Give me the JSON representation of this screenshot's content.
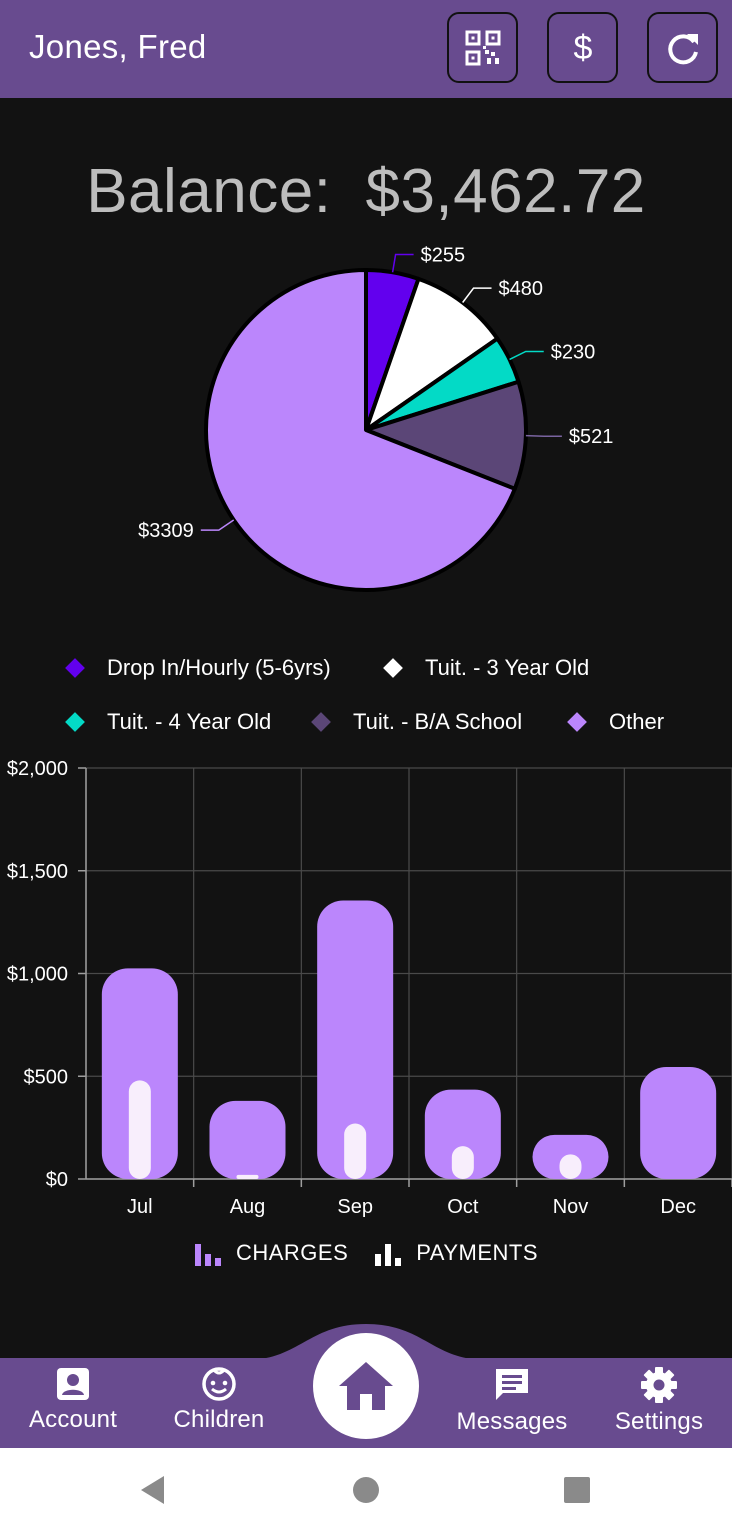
{
  "header": {
    "title": "Jones, Fred",
    "buttons": [
      {
        "name": "qr-code-button",
        "icon": "qr-code-icon"
      },
      {
        "name": "payment-button",
        "icon": "dollar-icon"
      },
      {
        "name": "refresh-button",
        "icon": "refresh-icon"
      }
    ]
  },
  "balance": {
    "label": "Balance:",
    "amount": "$3,462.72"
  },
  "pie_legend": [
    {
      "label": "Drop In/Hourly (5-6yrs)",
      "color": "#6200ee"
    },
    {
      "label": "Tuit. - 3 Year Old",
      "color": "#ffffff"
    },
    {
      "label": "Tuit. - 4 Year Old",
      "color": "#03dac6"
    },
    {
      "label": "Tuit. - B/A School",
      "color": "#5b4677"
    },
    {
      "label": "Other",
      "color": "#bb86fc"
    }
  ],
  "bar_legend": {
    "charges": "CHARGES",
    "payments": "PAYMENTS"
  },
  "chart_data": [
    {
      "type": "pie",
      "title": "",
      "slices": [
        {
          "label": "Drop In/Hourly (5-6yrs)",
          "value": 255,
          "display": "$255",
          "color": "#6200ee"
        },
        {
          "label": "Tuit. - 3 Year Old",
          "value": 480,
          "display": "$480",
          "color": "#ffffff"
        },
        {
          "label": "Tuit. - 4 Year Old",
          "value": 230,
          "display": "$230",
          "color": "#03dac6"
        },
        {
          "label": "Tuit. - B/A School",
          "value": 521,
          "display": "$521",
          "color": "#5b4677"
        },
        {
          "label": "Other",
          "value": 3309,
          "display": "$3309",
          "color": "#bb86fc"
        }
      ]
    },
    {
      "type": "bar",
      "title": "",
      "categories": [
        "Jul",
        "Aug",
        "Sep",
        "Oct",
        "Nov",
        "Dec"
      ],
      "series": [
        {
          "name": "CHARGES",
          "values": [
            1025,
            380,
            1355,
            435,
            215,
            545
          ],
          "color": "#bb86fc"
        },
        {
          "name": "PAYMENTS",
          "values": [
            480,
            20,
            270,
            160,
            120,
            0
          ],
          "color": "#f8eefc"
        }
      ],
      "yticks": [
        "$0",
        "$500",
        "$1,000",
        "$1,500",
        "$2,000"
      ],
      "ylim": [
        0,
        2000
      ],
      "grid": true,
      "legend": "bottom"
    }
  ],
  "bottom_nav": [
    {
      "label": "Account",
      "icon": "account-icon"
    },
    {
      "label": "Children",
      "icon": "child-face-icon"
    },
    {
      "label": "",
      "icon": "home-icon"
    },
    {
      "label": "Messages",
      "icon": "message-icon"
    },
    {
      "label": "Settings",
      "icon": "gear-icon"
    }
  ],
  "system_nav": [
    "back-icon",
    "home-circle-icon",
    "recents-icon"
  ]
}
